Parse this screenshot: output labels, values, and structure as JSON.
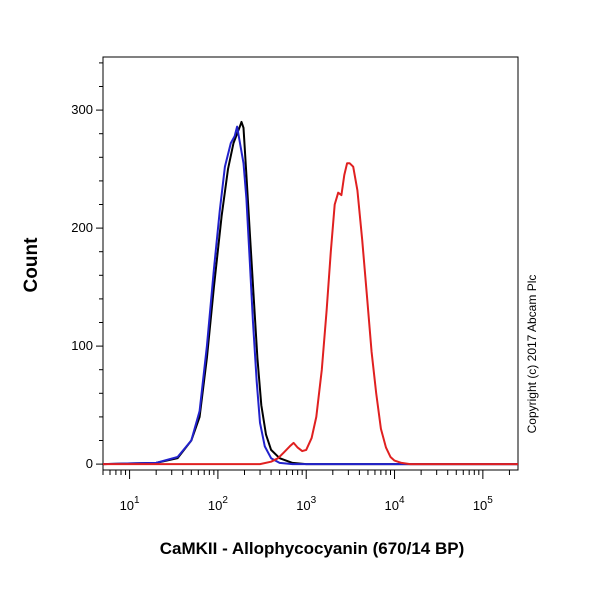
{
  "chart_data": {
    "type": "line",
    "xlabel": "CaMKII - Allophycocyanin (670/14 BP)",
    "ylabel": "Count",
    "x_scale": "log",
    "xlim": [
      5,
      250000
    ],
    "ylim": [
      -5,
      345
    ],
    "x_ticks": [
      {
        "value": 10,
        "base": "10",
        "exp": "1"
      },
      {
        "value": 100,
        "base": "10",
        "exp": "2"
      },
      {
        "value": 1000,
        "base": "10",
        "exp": "3"
      },
      {
        "value": 10000,
        "base": "10",
        "exp": "4"
      },
      {
        "value": 100000,
        "base": "10",
        "exp": "5"
      }
    ],
    "y_ticks": [
      0,
      100,
      200,
      300
    ],
    "grid": false,
    "copyright": "Copyright (c) 2017 Abcam Plc",
    "series": [
      {
        "color": "#000000",
        "points": [
          [
            5,
            0
          ],
          [
            20,
            1
          ],
          [
            35,
            5
          ],
          [
            50,
            20
          ],
          [
            62,
            40
          ],
          [
            75,
            90
          ],
          [
            90,
            150
          ],
          [
            110,
            210
          ],
          [
            130,
            250
          ],
          [
            150,
            272
          ],
          [
            165,
            280
          ],
          [
            175,
            285
          ],
          [
            185,
            290
          ],
          [
            195,
            285
          ],
          [
            210,
            245
          ],
          [
            230,
            195
          ],
          [
            255,
            140
          ],
          [
            280,
            90
          ],
          [
            310,
            50
          ],
          [
            350,
            25
          ],
          [
            400,
            12
          ],
          [
            500,
            5
          ],
          [
            700,
            1
          ],
          [
            1000,
            0
          ],
          [
            250000,
            0
          ]
        ]
      },
      {
        "color": "#2222cc",
        "points": [
          [
            5,
            0
          ],
          [
            20,
            1
          ],
          [
            35,
            6
          ],
          [
            50,
            20
          ],
          [
            62,
            45
          ],
          [
            75,
            100
          ],
          [
            90,
            165
          ],
          [
            105,
            215
          ],
          [
            120,
            252
          ],
          [
            140,
            272
          ],
          [
            155,
            278
          ],
          [
            165,
            286
          ],
          [
            180,
            270
          ],
          [
            195,
            255
          ],
          [
            210,
            225
          ],
          [
            230,
            170
          ],
          [
            250,
            120
          ],
          [
            275,
            70
          ],
          [
            300,
            35
          ],
          [
            340,
            15
          ],
          [
            400,
            5
          ],
          [
            500,
            1
          ],
          [
            700,
            0
          ],
          [
            250000,
            0
          ]
        ]
      },
      {
        "color": "#e02020",
        "points": [
          [
            5,
            0
          ],
          [
            300,
            0
          ],
          [
            400,
            2
          ],
          [
            480,
            5
          ],
          [
            560,
            10
          ],
          [
            650,
            15
          ],
          [
            720,
            18
          ],
          [
            800,
            14
          ],
          [
            900,
            11
          ],
          [
            1000,
            12
          ],
          [
            1150,
            22
          ],
          [
            1300,
            40
          ],
          [
            1500,
            80
          ],
          [
            1700,
            130
          ],
          [
            1900,
            180
          ],
          [
            2100,
            220
          ],
          [
            2300,
            230
          ],
          [
            2500,
            228
          ],
          [
            2700,
            245
          ],
          [
            2900,
            255
          ],
          [
            3100,
            255
          ],
          [
            3400,
            252
          ],
          [
            3800,
            232
          ],
          [
            4300,
            190
          ],
          [
            4900,
            140
          ],
          [
            5500,
            95
          ],
          [
            6200,
            60
          ],
          [
            7000,
            30
          ],
          [
            8000,
            14
          ],
          [
            9000,
            6
          ],
          [
            10000,
            3
          ],
          [
            12000,
            1
          ],
          [
            15000,
            0
          ],
          [
            250000,
            0
          ]
        ]
      }
    ]
  }
}
